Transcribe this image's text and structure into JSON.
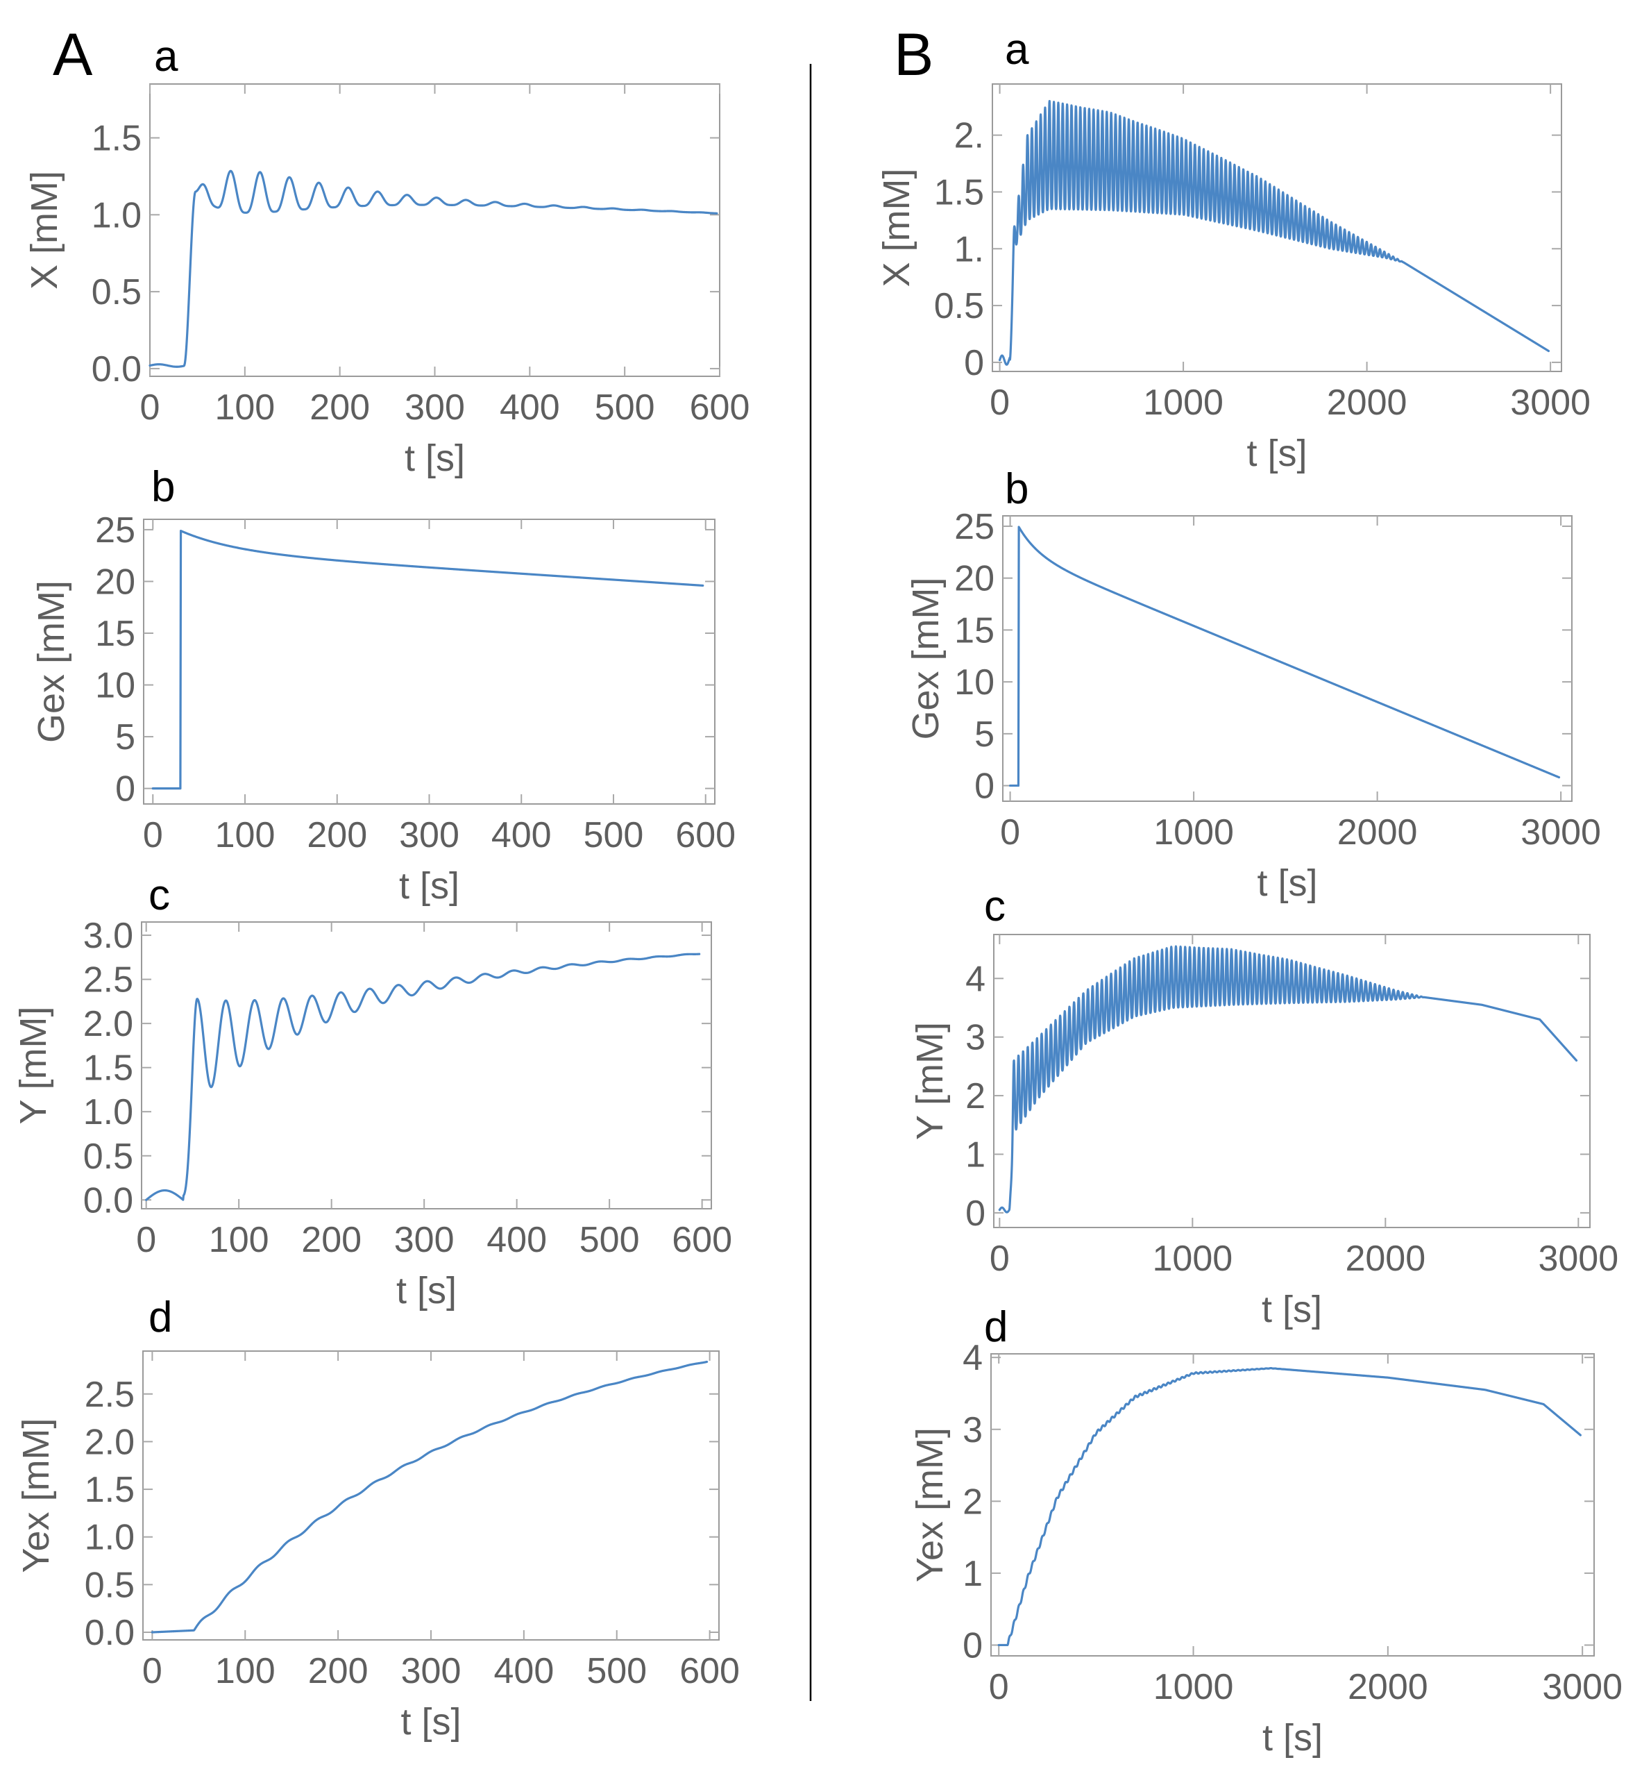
{
  "figure": {
    "panels": [
      {
        "letter": "A"
      },
      {
        "letter": "B"
      }
    ]
  },
  "colors": {
    "series": "#4a86c5"
  },
  "chart_data": [
    {
      "id": "Aa",
      "panel": "A",
      "sub": "a",
      "type": "line",
      "xlabel": "t [s]",
      "ylabel": "X [mM]",
      "xlim": [
        0,
        600
      ],
      "ylim": [
        -0.05,
        1.85
      ],
      "xticks": [
        0,
        100,
        200,
        300,
        400,
        500,
        600
      ],
      "xtick_labels": [
        "0",
        "100",
        "200",
        "300",
        "400",
        "500",
        "600"
      ],
      "yticks": [
        0,
        0.5,
        1.0,
        1.5
      ],
      "ytick_labels": [
        "0.0",
        "0.5",
        "1.0",
        "1.5"
      ],
      "model": {
        "kind": "damped_osc",
        "t_start": 0,
        "t_end": 597,
        "start_value": 0.02,
        "onset": 48,
        "ramp": 12,
        "baseline_at_onset": 1.15,
        "baseline_slope": -0.00025,
        "period": 31,
        "first_peak_offset": 6,
        "amplitude": 0.33,
        "growth_tau": 45,
        "decay_tau": 95,
        "end_value": 1.01
      }
    },
    {
      "id": "Ab",
      "panel": "A",
      "sub": "b",
      "type": "line",
      "xlabel": "t [s]",
      "ylabel": "Gex [mM]",
      "xlim": [
        -10,
        610
      ],
      "ylim": [
        -1.5,
        26
      ],
      "xticks": [
        0,
        100,
        200,
        300,
        400,
        500,
        600
      ],
      "xtick_labels": [
        "0",
        "100",
        "200",
        "300",
        "400",
        "500",
        "600"
      ],
      "yticks": [
        0,
        5,
        10,
        15,
        20,
        25
      ],
      "ytick_labels": [
        "0",
        "5",
        "10",
        "15",
        "20",
        "25"
      ],
      "model": {
        "kind": "step_decay",
        "t_start": 0,
        "t_end": 597,
        "pre_value": 0,
        "step_time": 30,
        "peak_value": 24.9,
        "fast_amplitude": 2.0,
        "fast_tau": 60,
        "slow_slope": -0.006,
        "end_value": 19.6
      }
    },
    {
      "id": "Ac",
      "panel": "A",
      "sub": "c",
      "type": "line",
      "xlabel": "t [s]",
      "ylabel": "Y [mM]",
      "xlim": [
        -5,
        610
      ],
      "ylim": [
        -0.1,
        3.15
      ],
      "xticks": [
        0,
        100,
        200,
        300,
        400,
        500,
        600
      ],
      "xtick_labels": [
        "0",
        "100",
        "200",
        "300",
        "400",
        "500",
        "600"
      ],
      "yticks": [
        0,
        0.5,
        1.0,
        1.5,
        2.0,
        2.5,
        3.0
      ],
      "ytick_labels": [
        "0.0",
        "0.5",
        "1.0",
        "1.5",
        "2.0",
        "2.5",
        "3.0"
      ],
      "model": {
        "kind": "rising_osc",
        "t_start": 0,
        "t_end": 597,
        "start_value": 0.0,
        "early_bump": 0.12,
        "onset": 40,
        "ramp": 15,
        "base_at_onset": 1.65,
        "base_end": 3.05,
        "base_tau": 330,
        "period": 31,
        "amplitude": 0.52,
        "decay_tau": 110
      }
    },
    {
      "id": "Ad",
      "panel": "A",
      "sub": "d",
      "type": "line",
      "xlabel": "t [s]",
      "ylabel": "Yex [mM]",
      "xlim": [
        -10,
        610
      ],
      "ylim": [
        -0.08,
        2.95
      ],
      "xticks": [
        0,
        100,
        200,
        300,
        400,
        500,
        600
      ],
      "xtick_labels": [
        "0",
        "100",
        "200",
        "300",
        "400",
        "500",
        "600"
      ],
      "yticks": [
        0,
        0.5,
        1.0,
        1.5,
        2.0,
        2.5
      ],
      "ytick_labels": [
        "0.0",
        "0.5",
        "1.0",
        "1.5",
        "2.0",
        "2.5"
      ],
      "model": {
        "kind": "rising_accum",
        "t_start": 0,
        "t_end": 597,
        "start_value": 0.0,
        "onset": 45,
        "end_value": 2.84,
        "tau": 330,
        "ripple_period": 31,
        "ripple_amplitude": 0.025
      }
    },
    {
      "id": "Ba",
      "panel": "B",
      "sub": "a",
      "type": "line",
      "xlabel": "t [s]",
      "ylabel": "X [mM]",
      "xlim": [
        -40,
        3060
      ],
      "ylim": [
        -0.08,
        2.45
      ],
      "xticks": [
        0,
        1000,
        2000,
        3000
      ],
      "xtick_labels": [
        "0",
        "1000",
        "2000",
        "3000"
      ],
      "yticks": [
        0,
        0.5,
        1,
        1.5,
        2
      ],
      "ytick_labels": [
        "0",
        "0.5",
        "1.",
        "1.5",
        "2."
      ],
      "model": {
        "kind": "fast_osc",
        "t_start": 0,
        "t_end": 2990,
        "start_value": 0.02,
        "onset": 55,
        "ramp": 25,
        "period": 24,
        "upper": [
          [
            80,
            1.2
          ],
          [
            150,
            2.0
          ],
          [
            270,
            2.3
          ],
          [
            600,
            2.2
          ],
          [
            1000,
            1.97
          ],
          [
            1400,
            1.64
          ],
          [
            1800,
            1.24
          ],
          [
            2100,
            0.97
          ],
          [
            2200,
            0.88
          ],
          [
            2990,
            0.1
          ]
        ],
        "lower": [
          [
            80,
            1.0
          ],
          [
            150,
            1.25
          ],
          [
            270,
            1.35
          ],
          [
            600,
            1.34
          ],
          [
            1000,
            1.3
          ],
          [
            1400,
            1.16
          ],
          [
            1800,
            1.0
          ],
          [
            2100,
            0.92
          ],
          [
            2200,
            0.88
          ],
          [
            2990,
            0.1
          ]
        ]
      }
    },
    {
      "id": "Bb",
      "panel": "B",
      "sub": "b",
      "type": "line",
      "xlabel": "t [s]",
      "ylabel": "Gex [mM]",
      "xlim": [
        -40,
        3060
      ],
      "ylim": [
        -1.5,
        26
      ],
      "xticks": [
        0,
        1000,
        2000,
        3000
      ],
      "xtick_labels": [
        "0",
        "1000",
        "2000",
        "3000"
      ],
      "yticks": [
        0,
        5,
        10,
        15,
        20,
        25
      ],
      "ytick_labels": [
        "0",
        "5",
        "10",
        "15",
        "20",
        "25"
      ],
      "model": {
        "kind": "step_decay",
        "t_start": 0,
        "t_end": 2990,
        "pre_value": 0,
        "step_time": 45,
        "peak_value": 25,
        "fast_amplitude": 2.6,
        "fast_tau": 110,
        "slow_slope": -0.0072,
        "end_value": 0.8
      }
    },
    {
      "id": "Bc",
      "panel": "B",
      "sub": "c",
      "type": "line",
      "xlabel": "t [s]",
      "ylabel": "Y [mM]",
      "xlim": [
        -30,
        3060
      ],
      "ylim": [
        -0.25,
        4.75
      ],
      "xticks": [
        0,
        1000,
        2000,
        3000
      ],
      "xtick_labels": [
        "0",
        "1000",
        "2000",
        "3000"
      ],
      "yticks": [
        0,
        1,
        2,
        3,
        4
      ],
      "ytick_labels": [
        "0",
        "1",
        "2",
        "3",
        "4"
      ],
      "model": {
        "kind": "fast_osc",
        "t_start": 0,
        "t_end": 2990,
        "start_value": 0.05,
        "onset": 50,
        "ramp": 25,
        "period": 24,
        "upper": [
          [
            70,
            2.6
          ],
          [
            200,
            3.0
          ],
          [
            450,
            3.8
          ],
          [
            700,
            4.35
          ],
          [
            900,
            4.55
          ],
          [
            1200,
            4.5
          ],
          [
            1500,
            4.32
          ],
          [
            1800,
            4.05
          ],
          [
            2050,
            3.8
          ],
          [
            2200,
            3.68
          ],
          [
            2500,
            3.55
          ],
          [
            2800,
            3.3
          ],
          [
            2990,
            2.6
          ]
        ],
        "lower": [
          [
            70,
            1.35
          ],
          [
            200,
            1.95
          ],
          [
            450,
            2.9
          ],
          [
            700,
            3.35
          ],
          [
            900,
            3.5
          ],
          [
            1200,
            3.55
          ],
          [
            1500,
            3.58
          ],
          [
            1800,
            3.6
          ],
          [
            2050,
            3.64
          ],
          [
            2200,
            3.68
          ],
          [
            2500,
            3.55
          ],
          [
            2800,
            3.3
          ],
          [
            2990,
            2.6
          ]
        ]
      }
    },
    {
      "id": "Bd",
      "panel": "B",
      "sub": "d",
      "type": "line",
      "xlabel": "t [s]",
      "ylabel": "Yex [mM]",
      "xlim": [
        -40,
        3060
      ],
      "ylim": [
        -0.15,
        4.05
      ],
      "xticks": [
        0,
        1000,
        2000,
        3000
      ],
      "xtick_labels": [
        "0",
        "1000",
        "2000",
        "3000"
      ],
      "yticks": [
        0,
        1,
        2,
        3,
        4
      ],
      "ytick_labels": [
        "0",
        "1",
        "2",
        "3",
        "4"
      ],
      "model": {
        "kind": "interp_ripple",
        "t_start": 0,
        "t_end": 2990,
        "start_value": 0.0,
        "onset": 45,
        "ripple_period": 24,
        "ripple_amplitude": 0.03,
        "ripple_fade": 1500,
        "points": [
          [
            45,
            0.0
          ],
          [
            150,
            0.95
          ],
          [
            300,
            2.05
          ],
          [
            500,
            2.95
          ],
          [
            700,
            3.45
          ],
          [
            1000,
            3.78
          ],
          [
            1400,
            3.85
          ],
          [
            2000,
            3.72
          ],
          [
            2500,
            3.55
          ],
          [
            2800,
            3.35
          ],
          [
            2990,
            2.92
          ]
        ]
      }
    }
  ]
}
